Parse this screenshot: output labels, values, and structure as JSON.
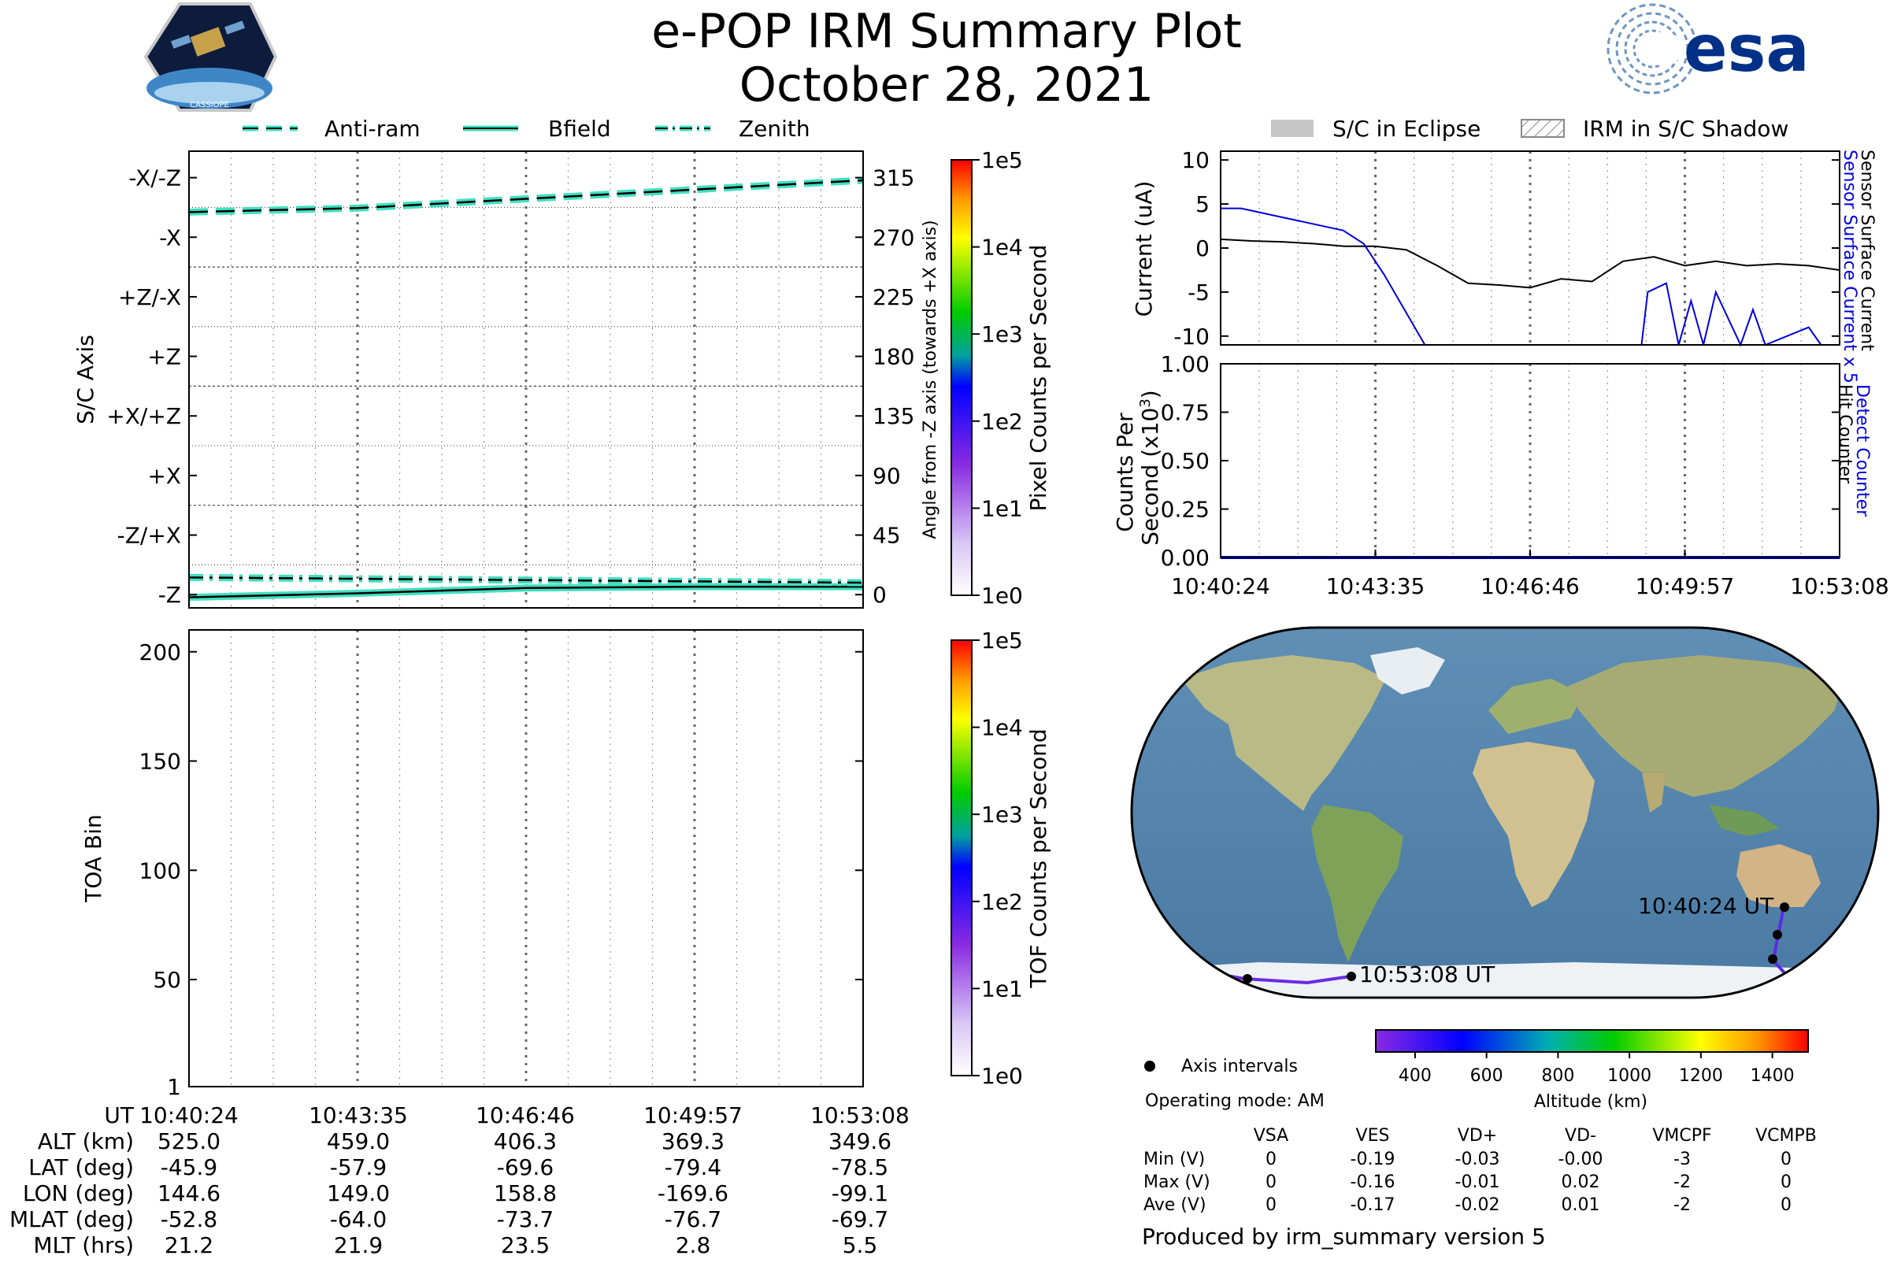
{
  "header": {
    "title": "e-POP IRM Summary Plot",
    "date": "October 28, 2021",
    "mission_logo_text": "CASSIOPE",
    "agency_logo_text": "esa"
  },
  "colors": {
    "trace_cyan": "#40e0c0",
    "current_blue": "#0000dd",
    "frame_black": "#000000",
    "esa_navy": "#003087"
  },
  "time_ticks": [
    "10:40:24",
    "10:43:35",
    "10:46:46",
    "10:49:57",
    "10:53:08"
  ],
  "chart_data": [
    {
      "id": "sc_axis",
      "type": "line",
      "legend": [
        "Anti-ram",
        "Bfield",
        "Zenith"
      ],
      "ylabel": "S/C Axis",
      "y2label": "Angle from -Z axis (towards +X axis)",
      "ylim": [
        -10,
        335
      ],
      "yticklabels": [
        "-Z",
        "-Z/+X",
        "+X",
        "+X/+Z",
        "+Z",
        "+Z/-X",
        "-X",
        "-X/-Z"
      ],
      "y2ticklabels": [
        "0",
        "45",
        "90",
        "135",
        "180",
        "225",
        "270",
        "315"
      ],
      "colorbar": {
        "label": "Pixel Counts per Second",
        "ticks": [
          "1e0",
          "1e1",
          "1e2",
          "1e3",
          "1e4",
          "1e5"
        ],
        "scale": "log"
      },
      "x": [
        0,
        0.25,
        0.5,
        0.75,
        1
      ],
      "series": [
        {
          "name": "Anti-ram",
          "style": "dashed",
          "values": [
            289,
            292,
            299,
            306,
            313
          ]
        },
        {
          "name": "Bfield",
          "style": "solid",
          "values": [
            -2,
            1,
            5,
            6,
            6
          ]
        },
        {
          "name": "Zenith",
          "style": "dashdot",
          "values": [
            13,
            12,
            11,
            10,
            9
          ]
        }
      ]
    },
    {
      "id": "toa",
      "type": "heatmap",
      "ylabel": "TOA Bin",
      "yticklabels": [
        "1",
        "50",
        "100",
        "150",
        "200"
      ],
      "ylim": [
        1,
        210
      ],
      "colorbar": {
        "label": "TOF Counts per Second",
        "ticks": [
          "1e0",
          "1e1",
          "1e2",
          "1e3",
          "1e4",
          "1e5"
        ],
        "scale": "log"
      }
    },
    {
      "id": "current",
      "type": "line",
      "legend": [
        "S/C in Eclipse",
        "IRM in S/C Shadow"
      ],
      "ylabel": "Current (uA)",
      "right_labels": [
        "Sensor Surface Current x 5",
        "Sensor Surface Current"
      ],
      "ylim": [
        -11,
        11
      ],
      "yticklabels": [
        "10",
        "5",
        "0",
        "-5",
        "-10"
      ],
      "series": [
        {
          "name": "Sensor Surface Current",
          "values": [
            1,
            0.8,
            0.7,
            0.5,
            0.2,
            0.2,
            -0.2,
            -2,
            -4,
            -4.2,
            -4.5,
            -3.5,
            -3.8,
            -1.5,
            -1,
            -2,
            -1.5,
            -2,
            -1.8,
            -2,
            -2.5
          ]
        },
        {
          "name": "Sensor Surface Current x 5",
          "values": [
            4.5,
            4.5,
            4,
            3.5,
            3,
            2.5,
            2,
            0.5,
            -3,
            -7,
            -11
          ]
        }
      ]
    },
    {
      "id": "counts",
      "type": "line",
      "ylabel": "Counts Per Second (x10³)",
      "right_labels": [
        "Detect Counter",
        "Hit Counter"
      ],
      "ylim": [
        0,
        1
      ],
      "yticklabels": [
        "1.00",
        "0.75",
        "0.50",
        "0.25",
        "0.00"
      ],
      "series": [
        {
          "name": "Detect Counter",
          "values": [
            0,
            0
          ]
        }
      ]
    },
    {
      "id": "map",
      "type": "map",
      "annotations": [
        "10:40:24 UT",
        "10:53:08 UT"
      ],
      "legend": [
        "Axis intervals"
      ],
      "colorbar": {
        "label": "Altitude (km)",
        "ticks": [
          "400",
          "600",
          "800",
          "1000",
          "1200",
          "1400"
        ]
      }
    }
  ],
  "footer": {
    "operating_mode": "Operating mode: AM",
    "produced_by": "Produced by irm_summary version 5",
    "voltage_headers": [
      "VSA",
      "VES",
      "VD+",
      "VD-",
      "VMCPF",
      "VCMPB"
    ],
    "voltage_rows": [
      {
        "label": "Min (V)",
        "values": [
          "0",
          "-0.19",
          "-0.03",
          "-0.00",
          "-3",
          "0"
        ]
      },
      {
        "label": "Max (V)",
        "values": [
          "0",
          "-0.16",
          "-0.01",
          "0.02",
          "-2",
          "0"
        ]
      },
      {
        "label": "Ave (V)",
        "values": [
          "0",
          "-0.17",
          "-0.02",
          "0.01",
          "-2",
          "0"
        ]
      }
    ]
  },
  "ephemeris": {
    "rows": [
      {
        "label": "UT",
        "values": [
          "10:40:24",
          "10:43:35",
          "10:46:46",
          "10:49:57",
          "10:53:08"
        ]
      },
      {
        "label": "ALT (km)",
        "values": [
          "525.0",
          "459.0",
          "406.3",
          "369.3",
          "349.6"
        ]
      },
      {
        "label": "LAT (deg)",
        "values": [
          "-45.9",
          "-57.9",
          "-69.6",
          "-79.4",
          "-78.5"
        ]
      },
      {
        "label": "LON (deg)",
        "values": [
          "144.6",
          "149.0",
          "158.8",
          "-169.6",
          "-99.1"
        ]
      },
      {
        "label": "MLAT (deg)",
        "values": [
          "-52.8",
          "-64.0",
          "-73.7",
          "-76.7",
          "-69.7"
        ]
      },
      {
        "label": "MLT (hrs)",
        "values": [
          "21.2",
          "21.9",
          "23.5",
          "2.8",
          "5.5"
        ]
      }
    ]
  }
}
